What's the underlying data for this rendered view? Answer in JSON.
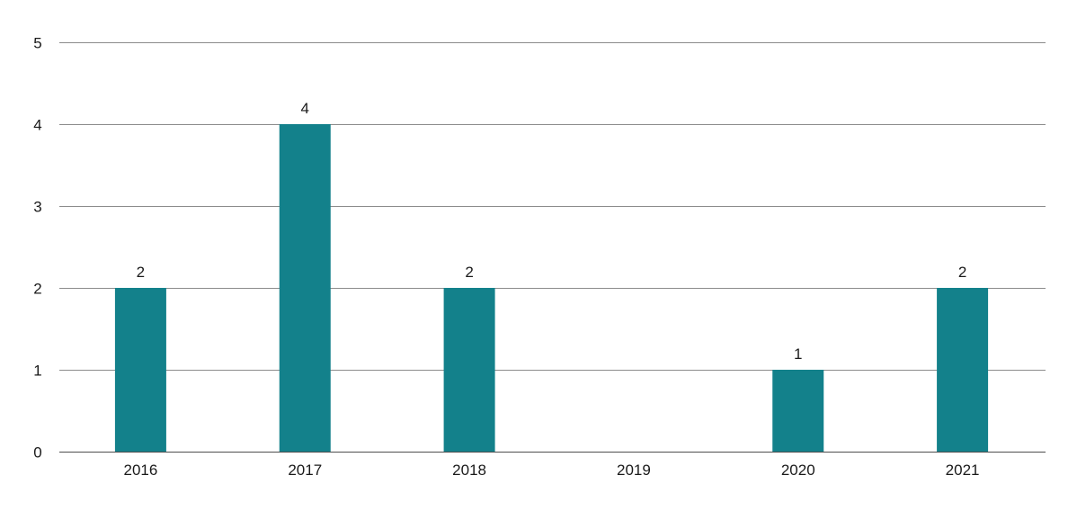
{
  "chart_data": {
    "type": "bar",
    "title": "",
    "xlabel": "",
    "ylabel": "",
    "categories": [
      "2016",
      "2017",
      "2018",
      "2019",
      "2020",
      "2021"
    ],
    "values": [
      2,
      4,
      2,
      0,
      1,
      2
    ],
    "data_labels": [
      "2",
      "4",
      "2",
      "",
      "1",
      "2"
    ],
    "ylim": [
      0,
      5
    ],
    "yticks": [
      0,
      1,
      2,
      3,
      4,
      5
    ],
    "ytick_labels": [
      "0",
      "1",
      "2",
      "3",
      "4",
      "5"
    ],
    "grid": true,
    "legend": "none",
    "bar_color": "#13818b"
  }
}
